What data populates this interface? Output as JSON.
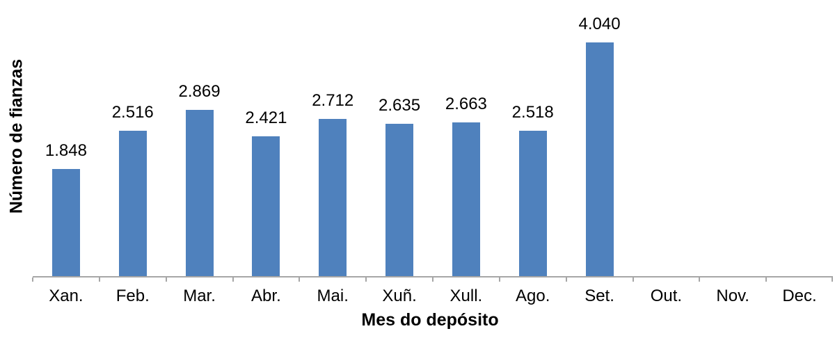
{
  "chart": {
    "y_axis_title": "Número de fianzas",
    "x_axis_title": "Mes do depósito"
  },
  "chart_data": {
    "type": "bar",
    "title": "",
    "xlabel": "Mes do depósito",
    "ylabel": "Número de fianzas",
    "categories": [
      "Xan.",
      "Feb.",
      "Mar.",
      "Abr.",
      "Mai.",
      "Xuñ.",
      "Xull.",
      "Ago.",
      "Set.",
      "Out.",
      "Nov.",
      "Dec."
    ],
    "values": [
      1848,
      2516,
      2869,
      2421,
      2712,
      2635,
      2663,
      2518,
      4040,
      null,
      null,
      null
    ],
    "value_labels": [
      "1.848",
      "2.516",
      "2.869",
      "2.421",
      "2.712",
      "2.635",
      "2.663",
      "2.518",
      "4.040",
      "",
      "",
      ""
    ],
    "bar_color": "#4f81bd",
    "axis_color": "#a6a6a6",
    "text_color": "#000000",
    "grid": false,
    "legend": false,
    "y_axis_ticks_visible": false,
    "ylim": [
      0,
      4500
    ]
  }
}
